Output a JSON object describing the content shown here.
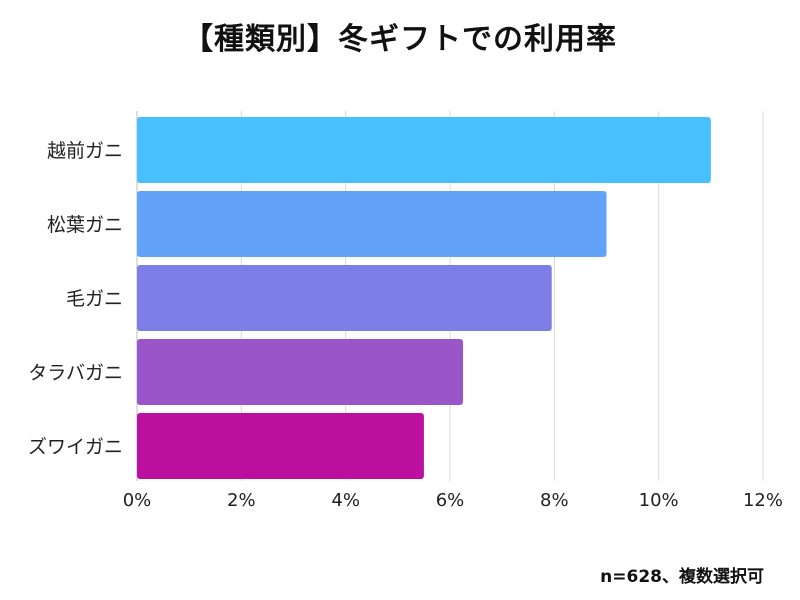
{
  "chart_data": {
    "type": "bar",
    "orientation": "horizontal",
    "title": "【種類別】冬ギフトでの利用率",
    "categories": [
      "越前ガニ",
      "松葉ガニ",
      "毛ガニ",
      "タラバガニ",
      "ズワイガニ"
    ],
    "values": [
      11.0,
      9.0,
      7.95,
      6.25,
      5.5
    ],
    "xlim": [
      0,
      12
    ],
    "x_ticks": [
      "0%",
      "2%",
      "4%",
      "6%",
      "8%",
      "10%",
      "12%"
    ],
    "grid": true,
    "colors": [
      "#47c0fd",
      "#63a2f9",
      "#7d7fe7",
      "#9a56c9",
      "#bb109e"
    ]
  },
  "footnote": "n=628、複数選択可"
}
